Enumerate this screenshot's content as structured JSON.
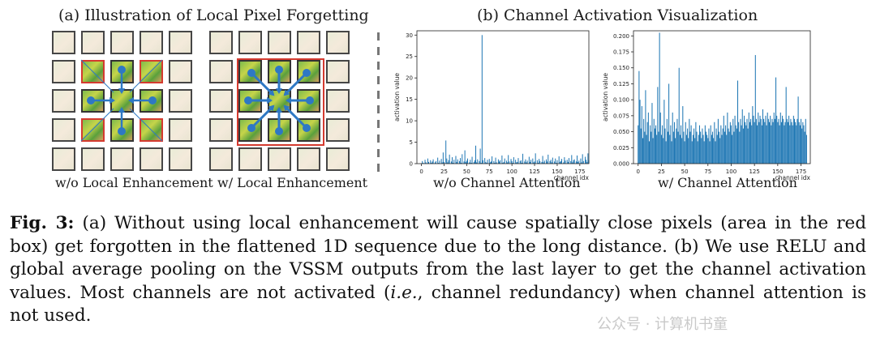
{
  "panel_a": {
    "title": "(a) Illustration of Local Pixel Forgetting",
    "label_left": "w/o Local Enhancement",
    "label_right": "w/ Local Enhancement"
  },
  "panel_b": {
    "title": "(b) Channel Activation Visualization",
    "label_left": "w/o Channel Attention",
    "label_right": "w/ Channel Attention"
  },
  "caption": {
    "label": "Fig. 3:",
    "text_1": " (a) Without using local enhancement will cause spatially close pixels (area in the red box) get forgotten in the flattened 1D sequence due to the long distance. (b) We use RELU and global average pooling on the VSSM outputs from the last layer to get the channel activation values. Most channels are not activated (",
    "ie": "i.e.",
    "text_2": ", channel redundancy) when channel attention is not used."
  },
  "watermark": "公众号 · 计算机书童",
  "colors": {
    "bar": "#1f77b4",
    "red_box": "#d43a2f",
    "arrow": "#2e78c4"
  },
  "chart_data": [
    {
      "type": "bar",
      "title": "w/o Channel Attention",
      "xlabel": "channel idx",
      "ylabel": "activation value",
      "xticks": [
        0,
        25,
        50,
        75,
        100,
        125,
        150,
        175
      ],
      "yticks": [
        "0",
        "5",
        "10",
        "15",
        "20",
        "25",
        "30"
      ],
      "ytick_values": [
        0,
        5,
        10,
        15,
        20,
        25,
        30
      ],
      "xlim": [
        -5,
        185
      ],
      "ylim": [
        0,
        31
      ],
      "values": [
        0,
        0.6,
        0.2,
        0,
        0.9,
        0.3,
        0,
        1.2,
        0.4,
        0,
        0.8,
        0.2,
        0.5,
        1.0,
        0,
        0.3,
        0.6,
        0,
        1.4,
        0.2,
        0.7,
        0,
        1.1,
        0.3,
        2.6,
        0.4,
        0,
        5.4,
        1.2,
        0.3,
        0.8,
        2.1,
        0,
        0.5,
        1.5,
        0.2,
        0.9,
        0,
        1.8,
        0.4,
        1.0,
        0,
        0.6,
        1.3,
        0.2,
        2.2,
        0,
        0.5,
        3.1,
        0.4,
        0.7,
        1.2,
        0,
        0.3,
        0.9,
        0.2,
        1.6,
        0,
        0.4,
        0.8,
        4.2,
        0.3,
        1.0,
        0,
        0.6,
        3.5,
        0.2,
        30.0,
        0.8,
        0,
        1.3,
        0.4,
        0.2,
        0.9,
        0,
        1.1,
        0.3,
        0.5,
        1.7,
        0,
        0.6,
        0.2,
        1.4,
        0.3,
        0,
        1.0,
        0.5,
        0.8,
        0,
        1.9,
        0.2,
        0.4,
        1.2,
        0,
        0.7,
        0.3,
        2.0,
        0.5,
        0,
        1.1,
        0.6,
        0.2,
        1.5,
        0,
        0.9,
        0.3,
        0.4,
        1.3,
        0,
        0.6,
        0.8,
        0.2,
        2.3,
        0,
        0.5,
        1.0,
        0.3,
        0.7,
        0,
        1.6,
        0.4,
        0.9,
        0,
        1.2,
        0.3,
        0.5,
        2.4,
        0,
        0.8,
        0.2,
        1.1,
        0.6,
        0,
        0.4,
        1.8,
        0.3,
        0.7,
        0,
        1.0,
        0.5,
        2.1,
        0,
        0.6,
        0.9,
        0.3,
        1.4,
        0,
        0.5,
        1.2,
        0.2,
        0.8,
        0,
        1.7,
        0.4,
        0.6,
        1.1,
        0,
        0.3,
        1.5,
        0.7,
        0,
        0.9,
        0.4,
        1.3,
        0,
        0.6,
        2.0,
        0.3,
        0.8,
        1.0,
        0,
        0.5,
        1.9,
        0.4,
        0.7,
        0,
        1.2,
        0.3,
        2.2,
        0.6,
        0,
        1.6,
        0.9,
        0.4,
        2.4,
        0.8
      ],
      "xstart": 0
    },
    {
      "type": "bar",
      "title": "w/ Channel Attention",
      "xlabel": "channel idx",
      "ylabel": "activation value",
      "xticks": [
        0,
        25,
        50,
        75,
        100,
        125,
        150,
        175
      ],
      "yticks": [
        "0.000",
        "0.025",
        "0.050",
        "0.075",
        "0.100",
        "0.125",
        "0.150",
        "0.175",
        "0.200"
      ],
      "ytick_values": [
        0,
        0.025,
        0.05,
        0.075,
        0.1,
        0.125,
        0.15,
        0.175,
        0.2
      ],
      "xlim": [
        -5,
        185
      ],
      "ylim": [
        0,
        0.208
      ],
      "values": [
        0.06,
        0.145,
        0.1,
        0.055,
        0.09,
        0.04,
        0.07,
        0.05,
        0.115,
        0.045,
        0.065,
        0.08,
        0.035,
        0.06,
        0.05,
        0.095,
        0.04,
        0.07,
        0.055,
        0.06,
        0.045,
        0.12,
        0.05,
        0.205,
        0.08,
        0.045,
        0.06,
        0.04,
        0.1,
        0.055,
        0.035,
        0.07,
        0.05,
        0.125,
        0.045,
        0.06,
        0.035,
        0.08,
        0.05,
        0.065,
        0.04,
        0.055,
        0.07,
        0.05,
        0.15,
        0.045,
        0.06,
        0.04,
        0.09,
        0.05,
        0.035,
        0.065,
        0.045,
        0.055,
        0.04,
        0.07,
        0.05,
        0.06,
        0.035,
        0.045,
        0.055,
        0.04,
        0.065,
        0.05,
        0.035,
        0.045,
        0.06,
        0.05,
        0.04,
        0.055,
        0.045,
        0.035,
        0.06,
        0.05,
        0.045,
        0.04,
        0.055,
        0.035,
        0.06,
        0.045,
        0.05,
        0.04,
        0.065,
        0.035,
        0.055,
        0.045,
        0.07,
        0.05,
        0.04,
        0.06,
        0.045,
        0.055,
        0.075,
        0.05,
        0.06,
        0.045,
        0.08,
        0.055,
        0.05,
        0.065,
        0.06,
        0.045,
        0.07,
        0.05,
        0.075,
        0.06,
        0.055,
        0.13,
        0.065,
        0.05,
        0.07,
        0.06,
        0.085,
        0.055,
        0.075,
        0.065,
        0.06,
        0.07,
        0.055,
        0.08,
        0.065,
        0.07,
        0.06,
        0.09,
        0.075,
        0.065,
        0.17,
        0.07,
        0.06,
        0.08,
        0.065,
        0.075,
        0.07,
        0.06,
        0.085,
        0.07,
        0.065,
        0.075,
        0.06,
        0.08,
        0.07,
        0.065,
        0.075,
        0.06,
        0.07,
        0.065,
        0.08,
        0.07,
        0.135,
        0.075,
        0.065,
        0.07,
        0.06,
        0.08,
        0.065,
        0.075,
        0.07,
        0.06,
        0.065,
        0.12,
        0.07,
        0.065,
        0.075,
        0.06,
        0.07,
        0.065,
        0.06,
        0.075,
        0.07,
        0.065,
        0.06,
        0.07,
        0.105,
        0.065,
        0.06,
        0.07,
        0.055,
        0.065,
        0.06,
        0.05,
        0.07,
        0.045
      ],
      "xstart": 0
    }
  ]
}
